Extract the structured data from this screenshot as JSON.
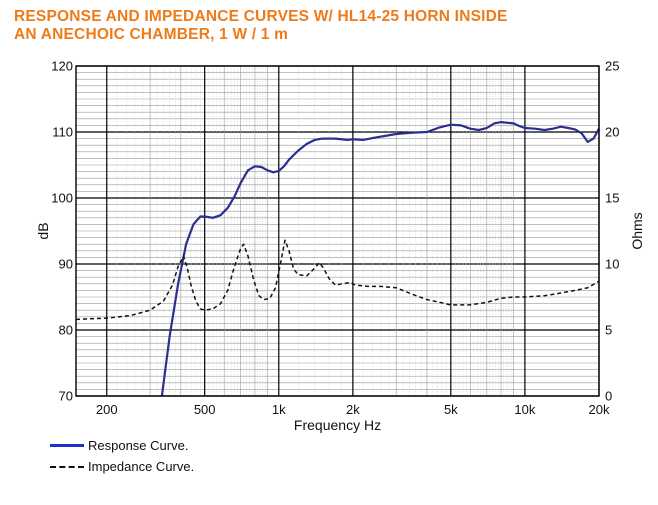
{
  "chart_data": {
    "title_line1": "RESPONSE AND IMPEDANCE CURVES W/ HL14-25 HORN INSIDE",
    "title_line2": "AN ANECHOIC CHAMBER, 1 W / 1 m",
    "type": "line",
    "xlabel": "Frequency Hz",
    "ylabel_left": "dB",
    "ylabel_right": "Ohms",
    "x_scale": "log",
    "xlim": [
      150,
      20000
    ],
    "ylim_left": [
      70,
      120
    ],
    "ylim_right": [
      0,
      25
    ],
    "x_ticks": [
      {
        "value": 200,
        "label": "200"
      },
      {
        "value": 500,
        "label": "500"
      },
      {
        "value": 1000,
        "label": "1k"
      },
      {
        "value": 2000,
        "label": "2k"
      },
      {
        "value": 5000,
        "label": "5k"
      },
      {
        "value": 10000,
        "label": "10k"
      },
      {
        "value": 20000,
        "label": "20k"
      }
    ],
    "y_left_ticks": [
      {
        "value": 70,
        "label": "70"
      },
      {
        "value": 80,
        "label": "80"
      },
      {
        "value": 90,
        "label": "90"
      },
      {
        "value": 100,
        "label": "100"
      },
      {
        "value": 110,
        "label": "110"
      },
      {
        "value": 120,
        "label": "120"
      }
    ],
    "y_right_ticks": [
      {
        "value": 0,
        "label": "0"
      },
      {
        "value": 5,
        "label": "5"
      },
      {
        "value": 10,
        "label": "10"
      },
      {
        "value": 15,
        "label": "15"
      },
      {
        "value": 20,
        "label": "20"
      },
      {
        "value": 25,
        "label": "25"
      }
    ],
    "grid": true,
    "series": [
      {
        "name": "Response Curve.",
        "axis": "left",
        "color": "#2c2f8f",
        "style": "solid",
        "points": [
          [
            335,
            70
          ],
          [
            360,
            79
          ],
          [
            390,
            87
          ],
          [
            420,
            93
          ],
          [
            450,
            96
          ],
          [
            480,
            97.2
          ],
          [
            500,
            97.2
          ],
          [
            540,
            97.0
          ],
          [
            580,
            97.4
          ],
          [
            620,
            98.5
          ],
          [
            660,
            100.2
          ],
          [
            700,
            102.3
          ],
          [
            750,
            104.2
          ],
          [
            800,
            104.8
          ],
          [
            850,
            104.7
          ],
          [
            900,
            104.2
          ],
          [
            950,
            103.9
          ],
          [
            1000,
            104.1
          ],
          [
            1050,
            104.8
          ],
          [
            1100,
            105.8
          ],
          [
            1200,
            107.2
          ],
          [
            1300,
            108.2
          ],
          [
            1400,
            108.8
          ],
          [
            1500,
            109.0
          ],
          [
            1700,
            109.0
          ],
          [
            1900,
            108.8
          ],
          [
            2000,
            108.9
          ],
          [
            2200,
            108.8
          ],
          [
            2500,
            109.2
          ],
          [
            3000,
            109.7
          ],
          [
            3500,
            109.9
          ],
          [
            4000,
            110.0
          ],
          [
            4500,
            110.7
          ],
          [
            5000,
            111.1
          ],
          [
            5500,
            111.0
          ],
          [
            6000,
            110.5
          ],
          [
            6500,
            110.3
          ],
          [
            7000,
            110.6
          ],
          [
            7500,
            111.3
          ],
          [
            8000,
            111.5
          ],
          [
            9000,
            111.3
          ],
          [
            9500,
            110.9
          ],
          [
            10000,
            110.6
          ],
          [
            11000,
            110.5
          ],
          [
            12000,
            110.3
          ],
          [
            13000,
            110.5
          ],
          [
            14000,
            110.8
          ],
          [
            15000,
            110.6
          ],
          [
            16000,
            110.4
          ],
          [
            17000,
            109.8
          ],
          [
            18000,
            108.5
          ],
          [
            19000,
            109.0
          ],
          [
            20000,
            110.5
          ]
        ]
      },
      {
        "name": "Impedance Curve.",
        "axis": "right",
        "color": "#111111",
        "style": "dashed",
        "points": [
          [
            150,
            5.8
          ],
          [
            200,
            5.9
          ],
          [
            250,
            6.1
          ],
          [
            300,
            6.5
          ],
          [
            340,
            7.2
          ],
          [
            370,
            8.4
          ],
          [
            390,
            9.8
          ],
          [
            410,
            10.6
          ],
          [
            425,
            9.7
          ],
          [
            440,
            8.4
          ],
          [
            460,
            7.2
          ],
          [
            480,
            6.6
          ],
          [
            500,
            6.5
          ],
          [
            540,
            6.6
          ],
          [
            580,
            7.0
          ],
          [
            620,
            8.0
          ],
          [
            660,
            9.8
          ],
          [
            700,
            11.2
          ],
          [
            720,
            11.5
          ],
          [
            750,
            10.6
          ],
          [
            790,
            8.8
          ],
          [
            830,
            7.6
          ],
          [
            870,
            7.3
          ],
          [
            920,
            7.4
          ],
          [
            970,
            8.2
          ],
          [
            1020,
            10.2
          ],
          [
            1060,
            11.8
          ],
          [
            1100,
            11.0
          ],
          [
            1150,
            9.6
          ],
          [
            1200,
            9.2
          ],
          [
            1300,
            9.1
          ],
          [
            1400,
            9.7
          ],
          [
            1460,
            10.1
          ],
          [
            1520,
            9.7
          ],
          [
            1600,
            8.9
          ],
          [
            1700,
            8.4
          ],
          [
            1800,
            8.5
          ],
          [
            1950,
            8.6
          ],
          [
            2050,
            8.4
          ],
          [
            2300,
            8.3
          ],
          [
            2600,
            8.3
          ],
          [
            3000,
            8.2
          ],
          [
            3500,
            7.7
          ],
          [
            4000,
            7.3
          ],
          [
            4500,
            7.1
          ],
          [
            5000,
            6.9
          ],
          [
            6000,
            6.9
          ],
          [
            7000,
            7.1
          ],
          [
            8000,
            7.4
          ],
          [
            9000,
            7.5
          ],
          [
            10000,
            7.5
          ],
          [
            12000,
            7.6
          ],
          [
            14000,
            7.8
          ],
          [
            16000,
            8.0
          ],
          [
            18000,
            8.2
          ],
          [
            20000,
            8.7
          ]
        ]
      }
    ]
  },
  "legend": {
    "response_label": "Response Curve.",
    "impedance_label": "Impedance Curve."
  }
}
